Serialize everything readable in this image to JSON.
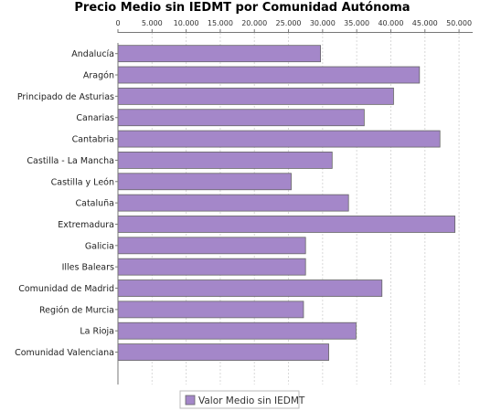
{
  "chart_data": {
    "type": "bar",
    "orientation": "horizontal",
    "title": "Precio Medio sin IEDMT por Comunidad Autónoma",
    "xlabel": "",
    "ylabel": "",
    "xlim": [
      0,
      52000
    ],
    "ticks": [
      0,
      5000,
      10000,
      15000,
      20000,
      25000,
      30000,
      35000,
      40000,
      45000,
      50000
    ],
    "tick_labels": [
      "0",
      "5.000",
      "10.000",
      "15.000",
      "20.000",
      "25.000",
      "30.000",
      "35.000",
      "40.000",
      "45.000",
      "50.000"
    ],
    "axis_position": "top",
    "grid": true,
    "legend_position": "bottom",
    "categories": [
      "Andalucía",
      "Aragón",
      "Principado de Asturias",
      "Canarias",
      "Cantabria",
      "Castilla - La Mancha",
      "Castilla y León",
      "Cataluña",
      "Extremadura",
      "Galicia",
      "Illes Balears",
      "Comunidad de Madrid",
      "Región de Murcia",
      "La Rioja",
      "Comunidad Valenciana"
    ],
    "series": [
      {
        "name": "Valor Medio sin IEDMT",
        "color": "#a487c9",
        "values": [
          29700,
          44200,
          40400,
          36100,
          47200,
          31400,
          25400,
          33800,
          49400,
          27500,
          27500,
          38700,
          27200,
          34900,
          30900
        ]
      }
    ]
  }
}
